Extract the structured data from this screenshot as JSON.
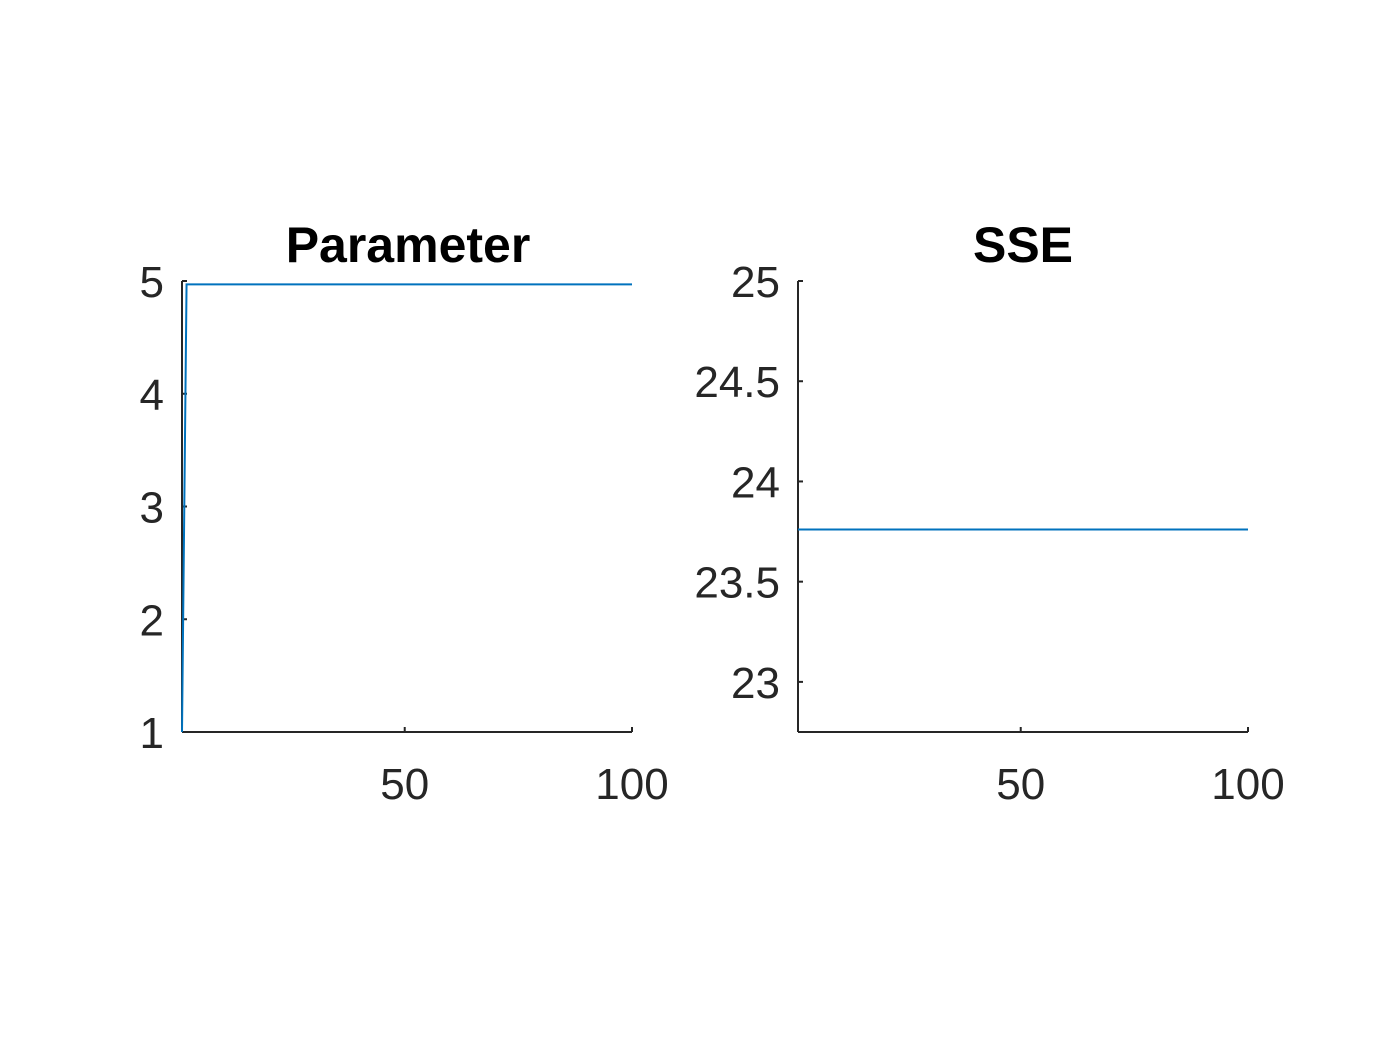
{
  "chart_data": [
    {
      "type": "line",
      "title": "Parameter",
      "xlabel": "",
      "ylabel": "",
      "xlim": [
        1,
        100
      ],
      "ylim": [
        1,
        5
      ],
      "xticks": [
        50,
        100
      ],
      "xtick_labels": [
        "50",
        "100"
      ],
      "yticks": [
        1,
        2,
        3,
        4,
        5
      ],
      "ytick_labels": [
        "1",
        "2",
        "3",
        "4",
        "5"
      ],
      "grid": false,
      "series": [
        {
          "color": "#0072BD",
          "x": [
            1,
            2,
            100
          ],
          "y": [
            1,
            4.97,
            4.97
          ]
        }
      ]
    },
    {
      "type": "line",
      "title": "SSE",
      "xlabel": "",
      "ylabel": "",
      "xlim": [
        1,
        100
      ],
      "ylim": [
        22.75,
        25
      ],
      "xticks": [
        50,
        100
      ],
      "xtick_labels": [
        "50",
        "100"
      ],
      "yticks": [
        23,
        23.5,
        24,
        24.5,
        25
      ],
      "ytick_labels": [
        "23",
        "23.5",
        "24",
        "24.5",
        "25"
      ],
      "grid": false,
      "series": [
        {
          "color": "#0072BD",
          "x": [
            1,
            100
          ],
          "y": [
            23.76,
            23.76
          ]
        }
      ]
    }
  ]
}
